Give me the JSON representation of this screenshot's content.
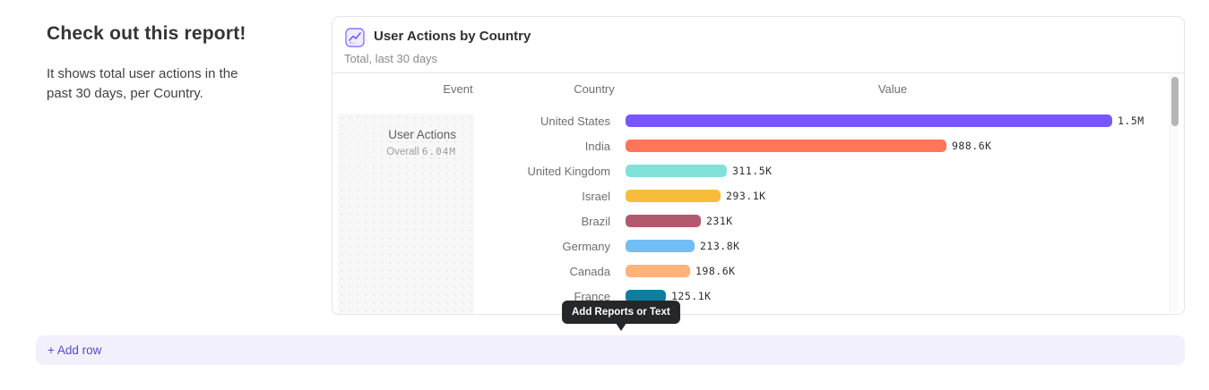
{
  "page": {
    "heading": "Check out this report!",
    "description": "It shows total user actions in the past 30 days, per Country."
  },
  "card": {
    "icon": "line-chart-icon",
    "title": "User Actions by Country",
    "subtitle": "Total, last 30 days",
    "columns": {
      "event": "Event",
      "country": "Country",
      "value": "Value"
    },
    "event_cell": {
      "name": "User Actions",
      "overall_label": "Overall",
      "overall_value": "6.04M"
    }
  },
  "chart_data": {
    "type": "bar",
    "orientation": "horizontal",
    "title": "User Actions by Country",
    "subtitle": "Total, last 30 days",
    "event": "User Actions",
    "overall_total": "6.04M",
    "categories": [
      "United States",
      "India",
      "United Kingdom",
      "Israel",
      "Brazil",
      "Germany",
      "Canada",
      "France"
    ],
    "values": [
      1500000,
      988600,
      311500,
      293100,
      231000,
      213800,
      198600,
      125100
    ],
    "value_labels": [
      "1.5M",
      "988.6K",
      "311.5K",
      "293.1K",
      "231K",
      "213.8K",
      "198.6K",
      "125.1K"
    ],
    "bar_colors": [
      "#7856ff",
      "#ff7557",
      "#80e1d9",
      "#f8bc3b",
      "#b2596e",
      "#72bef4",
      "#ffb27a",
      "#0d7ea0"
    ],
    "xlim": [
      0,
      1500000
    ],
    "legend": "none",
    "grid": false
  },
  "tooltip": {
    "label": "Add Reports or Text"
  },
  "footer": {
    "add_row_label": "+ Add row"
  },
  "colors": {
    "accent": "#7856ff",
    "add_row_text": "#544bc9",
    "add_row_bg": "#f2f0fc",
    "tooltip_bg": "#26272b"
  }
}
